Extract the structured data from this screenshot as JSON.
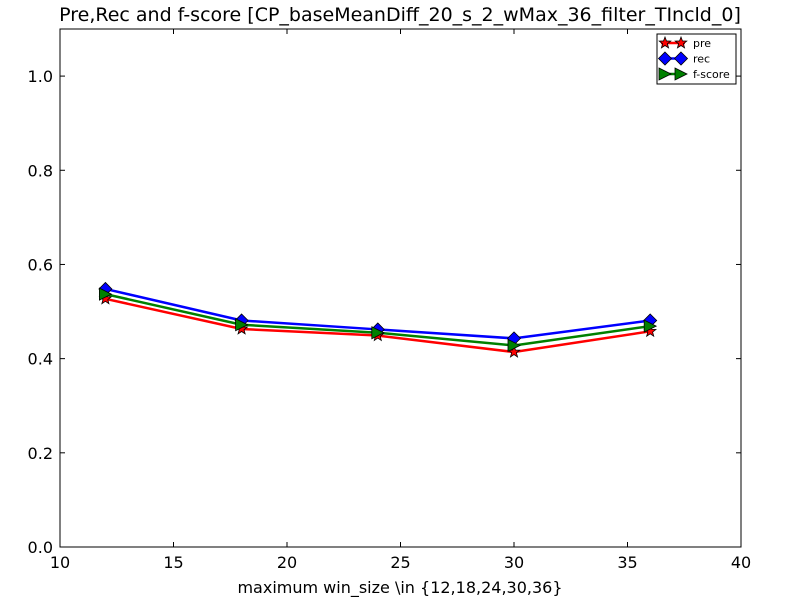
{
  "chart_data": {
    "type": "line",
    "title": "Pre,Rec and f-score [CP_baseMeanDiff_20_s_2_wMax_36_filter_TIncld_0]",
    "xlabel": "maximum win_size \\in {12,18,24,30,36}",
    "ylabel": "",
    "xlim": [
      10,
      40
    ],
    "ylim": [
      0.0,
      1.1
    ],
    "x_ticks": [
      10,
      15,
      20,
      25,
      30,
      35,
      40
    ],
    "y_ticks": [
      0.0,
      0.2,
      0.4,
      0.6,
      0.8,
      1.0
    ],
    "x_tick_labels": [
      "10",
      "15",
      "20",
      "25",
      "30",
      "35",
      "40"
    ],
    "y_tick_labels": [
      "0.0",
      "0.2",
      "0.4",
      "0.6",
      "0.8",
      "1.0"
    ],
    "grid": false,
    "legend_position": "top-right",
    "x": [
      12,
      18,
      24,
      30,
      36
    ],
    "series": [
      {
        "name": "pre",
        "values": [
          0.527,
          0.463,
          0.449,
          0.414,
          0.458
        ],
        "color": "#ff0000",
        "marker": "star"
      },
      {
        "name": "rec",
        "values": [
          0.548,
          0.481,
          0.462,
          0.443,
          0.481
        ],
        "color": "#0000ff",
        "marker": "diamond"
      },
      {
        "name": "f-score",
        "values": [
          0.537,
          0.472,
          0.455,
          0.428,
          0.469
        ],
        "color": "#008000",
        "marker": "triangle-right"
      }
    ]
  }
}
